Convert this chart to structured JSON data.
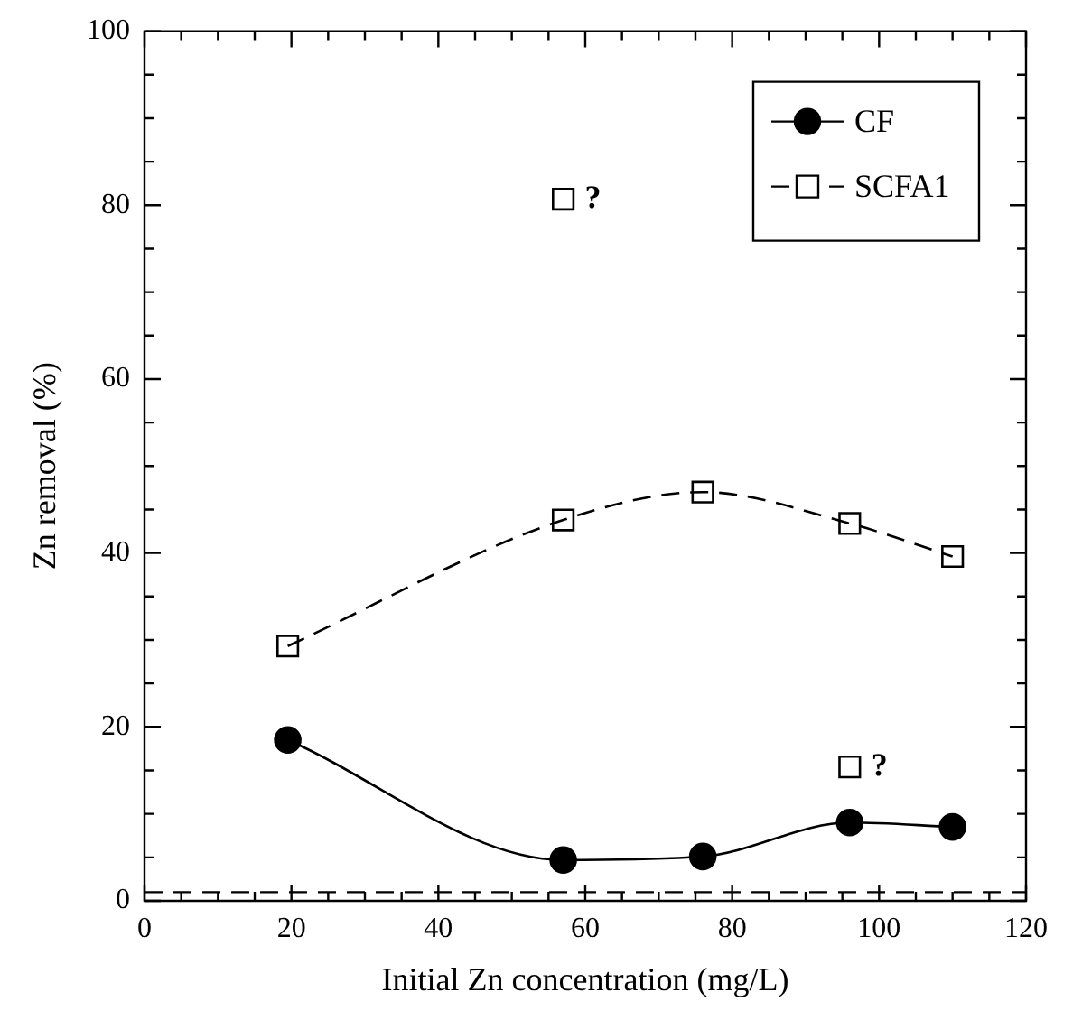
{
  "chart_data": {
    "type": "line",
    "xlabel": "Initial Zn concentration (mg/L)",
    "ylabel": "Zn removal (%)",
    "xlim": [
      0,
      120
    ],
    "ylim": [
      0,
      100
    ],
    "xticks": [
      0,
      {
        "value": 5,
        "label": null
      },
      {
        "value": 10,
        "label": null
      },
      {
        "value": 15,
        "label": null
      },
      20,
      {
        "value": 25,
        "label": null
      },
      {
        "value": 30,
        "label": null
      },
      {
        "value": 35,
        "label": null
      },
      40,
      {
        "value": 45,
        "label": null
      },
      {
        "value": 50,
        "label": null
      },
      {
        "value": 55,
        "label": null
      },
      60,
      {
        "value": 65,
        "label": null
      },
      {
        "value": 70,
        "label": null
      },
      {
        "value": 75,
        "label": null
      },
      80,
      {
        "value": 85,
        "label": null
      },
      {
        "value": 90,
        "label": null
      },
      {
        "value": 95,
        "label": null
      },
      100,
      {
        "value": 105,
        "label": null
      },
      {
        "value": 110,
        "label": null
      },
      {
        "value": 115,
        "label": null
      },
      120
    ],
    "yticks": [
      0,
      {
        "value": 5,
        "label": null
      },
      {
        "value": 10,
        "label": null
      },
      {
        "value": 15,
        "label": null
      },
      20,
      {
        "value": 25,
        "label": null
      },
      {
        "value": 30,
        "label": null
      },
      {
        "value": 35,
        "label": null
      },
      40,
      {
        "value": 45,
        "label": null
      },
      {
        "value": 50,
        "label": null
      },
      {
        "value": 55,
        "label": null
      },
      60,
      {
        "value": 65,
        "label": null
      },
      {
        "value": 70,
        "label": null
      },
      {
        "value": 75,
        "label": null
      },
      80,
      {
        "value": 85,
        "label": null
      },
      {
        "value": 90,
        "label": null
      },
      {
        "value": 95,
        "label": null
      },
      100
    ],
    "series": [
      {
        "name": "CF",
        "type": "line",
        "color": "#000000",
        "marker": "circle",
        "line_style": "solid",
        "x": [
          19.5,
          57,
          76,
          96,
          110
        ],
        "values": [
          18.5,
          4.7,
          5.1,
          9,
          8.5
        ]
      },
      {
        "name": "SCFA1",
        "type": "line",
        "color": "#000000",
        "marker": "square",
        "line_style": "dashed",
        "x": [
          19.5,
          57,
          76,
          96,
          110
        ],
        "values": [
          29.3,
          43.8,
          47,
          43.4,
          39.6
        ]
      },
      {
        "type": "scatter",
        "color": "#000000",
        "marker": "square",
        "x": [
          57,
          96
        ],
        "values": [
          80.7,
          15.4
        ]
      }
    ],
    "ref_lines": [
      {
        "axis": "y",
        "value": 1,
        "line_style": "dashed",
        "color": "#000000"
      }
    ],
    "annotations": [
      {
        "text": "?",
        "x": 57,
        "y": 80.7
      },
      {
        "text": "?",
        "x": 96,
        "y": 15.4
      }
    ],
    "legend": "top right",
    "grid": false
  }
}
